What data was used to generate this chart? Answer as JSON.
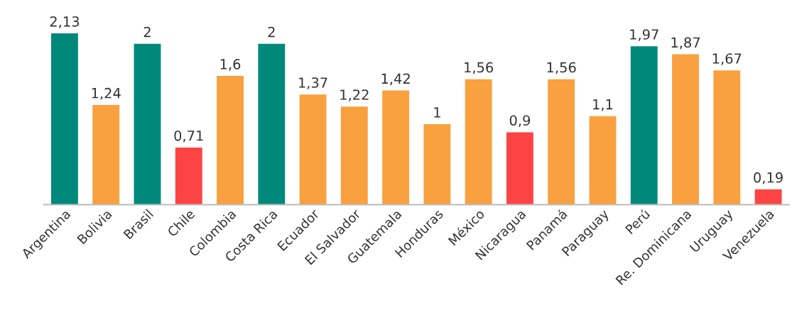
{
  "chart_data": {
    "type": "bar",
    "categories": [
      "Argentina",
      "Bolivia",
      "Brasil",
      "Chile",
      "Colombia",
      "Costa Rica",
      "Ecuador",
      "El Salvador",
      "Guatemala",
      "Honduras",
      "México",
      "Nicaragua",
      "Panamá",
      "Paraguay",
      "Perú",
      "Re. Dominicana",
      "Uruguay",
      "Venezuela"
    ],
    "values": [
      2.13,
      1.24,
      2,
      0.71,
      1.6,
      2,
      1.37,
      1.22,
      1.42,
      1,
      1.56,
      0.9,
      1.56,
      1.1,
      1.97,
      1.87,
      1.67,
      0.19
    ],
    "value_labels": [
      "2,13",
      "1,24",
      "2",
      "0,71",
      "1,6",
      "2",
      "1,37",
      "1,22",
      "1,42",
      "1",
      "1,56",
      "0,9",
      "1,56",
      "1,1",
      "1,97",
      "1,87",
      "1,67",
      "0,19"
    ],
    "colors": [
      "#00897b",
      "#f9a03f",
      "#00897b",
      "#fd4444",
      "#f9a03f",
      "#00897b",
      "#f9a03f",
      "#f9a03f",
      "#f9a03f",
      "#f9a03f",
      "#f9a03f",
      "#fd4444",
      "#f9a03f",
      "#f9a03f",
      "#00897b",
      "#f9a03f",
      "#f9a03f",
      "#fd4444"
    ],
    "tick_labels": "x"
  }
}
